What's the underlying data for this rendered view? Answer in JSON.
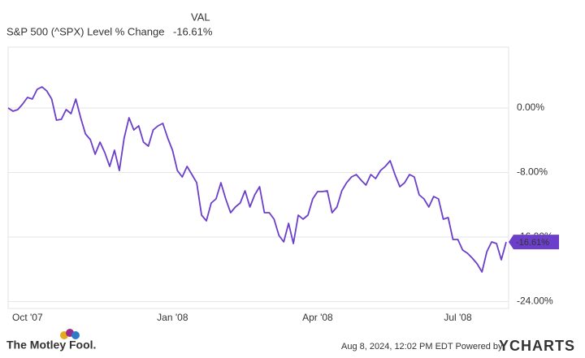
{
  "chart_data": {
    "type": "line",
    "legend_header": "VAL",
    "series": [
      {
        "name": "S&P 500 (^SPX) Level % Change",
        "color": "#6b3fc9",
        "values": [
          0,
          -0.4,
          -0.2,
          0.5,
          1.31,
          1.11,
          2.31,
          2.62,
          2.11,
          1.11,
          -1.51,
          -1.41,
          -0.2,
          -0.7,
          1.11,
          -1.21,
          -3.22,
          -3.92,
          -5.73,
          -4.23,
          -5.53,
          -7.24,
          -5.23,
          -7.75,
          -3.72,
          -1.21,
          -2.72,
          -2.21,
          -4.23,
          -4.73,
          -2.72,
          -2.21,
          -1.91,
          -3.72,
          -5.23,
          -7.75,
          -8.55,
          -7.24,
          -8.25,
          -9.26,
          -13.28,
          -13.98,
          -11.77,
          -11.27,
          -9.26,
          -11.27,
          -12.98,
          -12.27,
          -11.77,
          -10.26,
          -12.27,
          -10.76,
          -9.76,
          -12.98,
          -12.98,
          -13.78,
          -15.79,
          -16.6,
          -14.29,
          -16.8,
          -13.28,
          -13.78,
          -13.28,
          -11.27,
          -10.36,
          -10.36,
          -10.26,
          -12.98,
          -12.27,
          -10.26,
          -9.26,
          -8.55,
          -8.25,
          -8.95,
          -9.56,
          -8.25,
          -8.75,
          -7.75,
          -7.24,
          -6.54,
          -8.25,
          -9.76,
          -9.26,
          -8.25,
          -8.55,
          -10.76,
          -11.27,
          -12.27,
          -10.97,
          -11.27,
          -13.78,
          -13.58,
          -16.3,
          -16.3,
          -17.61,
          -18.01,
          -18.61,
          -19.32,
          -20.32,
          -17.81,
          -16.6,
          -16.8,
          -18.81,
          -16.61
        ],
        "value_labels": [
          null,
          null,
          null,
          null,
          null,
          null,
          null,
          null,
          null,
          null,
          null,
          null,
          null,
          null,
          null,
          null,
          null,
          null,
          null,
          null,
          null,
          null,
          null,
          null,
          null,
          null,
          null,
          null,
          null,
          null,
          null,
          null,
          null,
          null,
          null,
          null,
          null,
          null,
          null,
          null,
          null,
          null,
          null,
          null,
          null,
          null,
          null,
          null,
          null,
          null,
          null,
          null,
          null,
          null,
          null,
          null,
          null,
          null,
          null,
          null,
          null,
          null,
          null,
          null,
          null,
          null,
          null,
          null,
          null,
          null,
          null,
          null,
          null,
          null,
          null,
          null,
          null,
          null,
          null,
          null,
          null,
          null,
          null,
          null,
          null,
          null,
          null,
          null,
          null,
          null,
          null,
          null,
          null,
          null,
          null,
          null,
          null,
          null,
          null,
          null,
          null,
          null,
          null,
          "-16.61%"
        ]
      }
    ],
    "categories": [
      null,
      null,
      null,
      null,
      "Oct '07",
      null,
      null,
      null,
      null,
      null,
      null,
      null,
      null,
      null,
      null,
      null,
      null,
      null,
      null,
      null,
      null,
      null,
      null,
      null,
      null,
      null,
      null,
      null,
      null,
      null,
      null,
      null,
      null,
      null,
      "Jan '08",
      null,
      null,
      null,
      null,
      null,
      null,
      null,
      null,
      null,
      null,
      null,
      null,
      null,
      null,
      null,
      null,
      null,
      null,
      null,
      null,
      null,
      null,
      null,
      null,
      null,
      null,
      null,
      null,
      null,
      "Apr '08",
      null,
      null,
      null,
      null,
      null,
      null,
      null,
      null,
      null,
      null,
      null,
      null,
      null,
      null,
      null,
      null,
      null,
      null,
      null,
      null,
      null,
      null,
      null,
      null,
      null,
      null,
      null,
      null,
      "Jul '08",
      null,
      null,
      null,
      null,
      null,
      null,
      null,
      null,
      null,
      null
    ],
    "ylim": [
      -24.85,
      7.55
    ],
    "yticks": [
      {
        "value": 0,
        "label": "0.00%"
      },
      {
        "value": -8,
        "label": "-8.00%"
      },
      {
        "value": -16,
        "label": "-16.00%"
      },
      {
        "value": -24,
        "label": "-24.00%"
      }
    ],
    "grid": true
  },
  "footer": {
    "brand": "The Motley Fool.",
    "timestamp": "Aug 8, 2024, 12:02 PM EDT  Powered by",
    "powered_by": "YCHARTS"
  }
}
